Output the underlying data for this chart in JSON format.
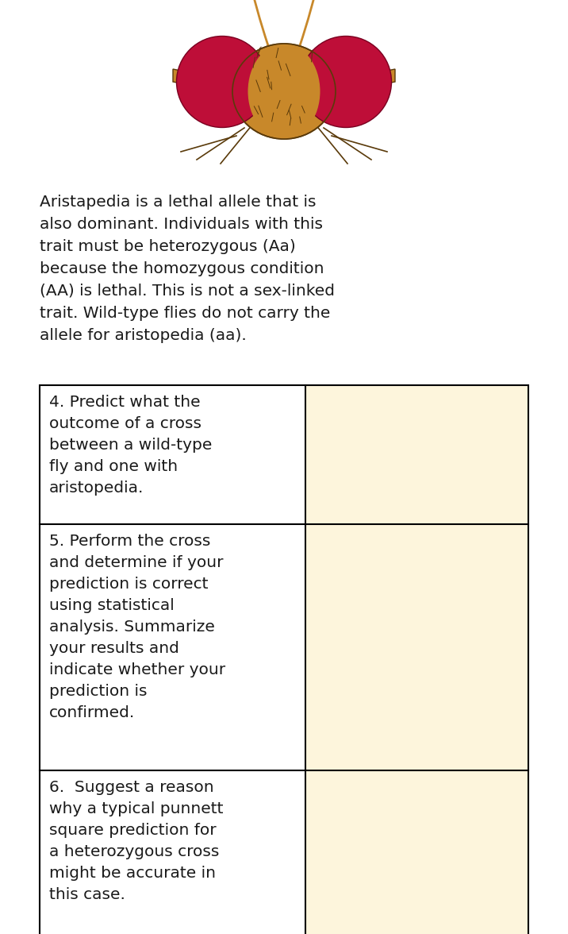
{
  "background_color": "#ffffff",
  "desc_lines": [
    "Aristapedia is a lethal allele that is",
    "also dominant. Individuals with this",
    "trait must be heterozygous (Aa)",
    "because the homozygous condition",
    "(AA) is lethal. This is not a sex-linked",
    "trait. Wild-type flies do not carry the",
    "allele for aristopedia (aa)."
  ],
  "rows": [
    {
      "lines": [
        "4. Predict what the",
        "outcome of a cross",
        "between a wild-type",
        "fly and one with",
        "aristopedia."
      ]
    },
    {
      "lines": [
        "5. Perform the cross",
        "and determine if your",
        "prediction is correct",
        "using statistical",
        "analysis. Summarize",
        "your results and",
        "indicate whether your",
        "prediction is",
        "confirmed."
      ]
    },
    {
      "lines": [
        "6.  Suggest a reason",
        "why a typical punnett",
        "square prediction for",
        "a heterozygous cross",
        "might be accurate in",
        "this case."
      ]
    }
  ],
  "table_border_color": "#000000",
  "right_cell_bg": "#fdf5dc",
  "left_cell_bg": "#ffffff",
  "text_color": "#1a1a1a",
  "fig_width": 7.16,
  "fig_height": 11.76,
  "dpi": 100
}
